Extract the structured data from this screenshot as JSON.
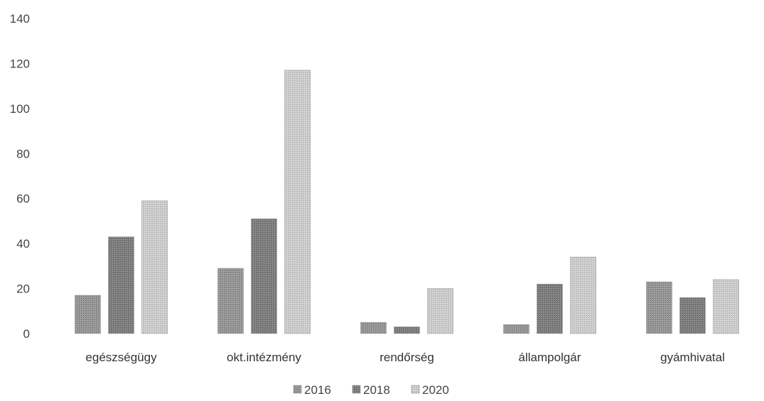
{
  "chart_data": {
    "type": "bar",
    "categories": [
      "egészségügy",
      "okt.intézmény",
      "rendőrség",
      "állampolgár",
      "gyámhivatal"
    ],
    "series": [
      {
        "name": "2016",
        "values": [
          17,
          29,
          5,
          4,
          23
        ],
        "color": "#8c8c8c"
      },
      {
        "name": "2018",
        "values": [
          43,
          51,
          3,
          22,
          16
        ],
        "color": "#7a7a7a"
      },
      {
        "name": "2020",
        "values": [
          59,
          117,
          20,
          34,
          24
        ],
        "color": "#c4c4c4"
      }
    ],
    "ylim": [
      0,
      140
    ],
    "yticks": [
      0,
      20,
      40,
      60,
      80,
      100,
      120,
      140
    ],
    "grid": false,
    "legend_position": "bottom",
    "title": "",
    "xlabel": "",
    "ylabel": ""
  }
}
